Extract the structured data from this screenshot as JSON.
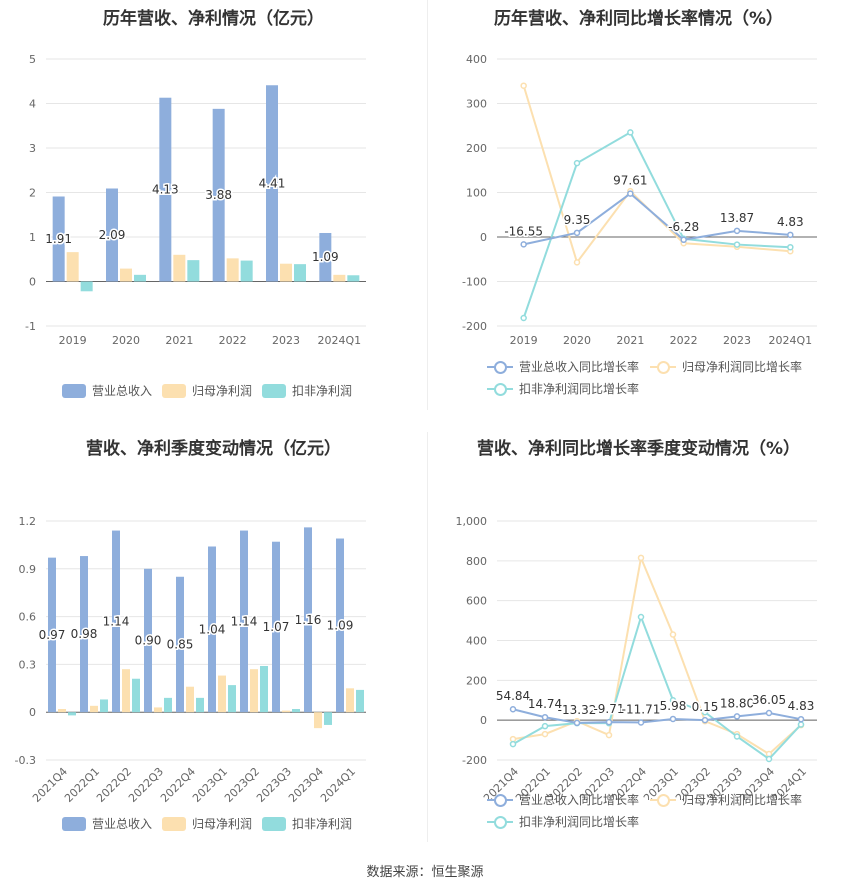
{
  "source_label": "数据来源：恒生聚源",
  "colors": {
    "revenue": "#8EAEDC",
    "net_profit": "#FCE0B0",
    "deducted_profit": "#92DCDD",
    "rev_line": "#8EAEDC",
    "np_line": "#FCE0B0",
    "dp_line": "#92DCDD"
  },
  "chart_data": [
    {
      "id": "annual_bars",
      "type": "bar",
      "title": "历年营收、净利情况（亿元）",
      "categories": [
        "2019",
        "2020",
        "2021",
        "2022",
        "2023",
        "2024Q1"
      ],
      "ylim": [
        -1,
        5
      ],
      "yticks": [
        -1,
        0,
        1,
        2,
        3,
        4,
        5
      ],
      "ytick_labels": [
        "-1",
        "0",
        "1",
        "2",
        "3",
        "4",
        "5"
      ],
      "series": [
        {
          "name": "营业总收入",
          "values": [
            1.91,
            2.09,
            4.13,
            3.88,
            4.41,
            1.09
          ],
          "labels": [
            "1.91",
            "2.09",
            "4.13",
            "3.88",
            "4.41",
            "1.09"
          ]
        },
        {
          "name": "归母净利润",
          "values": [
            0.66,
            0.29,
            0.6,
            0.52,
            0.4,
            0.15
          ]
        },
        {
          "name": "扣非净利润",
          "values": [
            -0.22,
            0.15,
            0.48,
            0.47,
            0.39,
            0.14
          ]
        }
      ],
      "legend_position": "bottom"
    },
    {
      "id": "annual_lines",
      "type": "line",
      "title": "历年营收、净利同比增长率情况（%）",
      "categories": [
        "2019",
        "2020",
        "2021",
        "2022",
        "2023",
        "2024Q1"
      ],
      "ylim": [
        -200,
        400
      ],
      "yticks": [
        -200,
        -100,
        0,
        100,
        200,
        300,
        400
      ],
      "ytick_labels": [
        "-200",
        "-100",
        "0",
        "100",
        "200",
        "300",
        "400"
      ],
      "series": [
        {
          "name": "营业总收入同比增长率",
          "values": [
            -16.55,
            9.35,
            97.61,
            -6.28,
            13.87,
            4.83
          ],
          "labels": [
            "-16.55",
            "9.35",
            "97.61",
            "-6.28",
            "13.87",
            "4.83"
          ]
        },
        {
          "name": "归母净利润同比增长率",
          "values": [
            340,
            -57,
            103,
            -14,
            -22,
            -32
          ]
        },
        {
          "name": "扣非净利润同比增长率",
          "values": [
            -182,
            166,
            235,
            -4,
            -17,
            -23
          ]
        }
      ],
      "legend_position": "bottom"
    },
    {
      "id": "quarterly_bars",
      "type": "bar",
      "title": "营收、净利季度变动情况（亿元）",
      "categories": [
        "2021Q4",
        "2022Q1",
        "2022Q2",
        "2022Q3",
        "2022Q4",
        "2023Q1",
        "2023Q2",
        "2023Q3",
        "2023Q4",
        "2024Q1"
      ],
      "ylim": [
        -0.3,
        1.2
      ],
      "yticks": [
        -0.3,
        0,
        0.3,
        0.6,
        0.9,
        1.2
      ],
      "ytick_labels": [
        "-0.3",
        "0",
        "0.3",
        "0.6",
        "0.9",
        "1.2"
      ],
      "series": [
        {
          "name": "营业总收入",
          "values": [
            0.97,
            0.98,
            1.14,
            0.9,
            0.85,
            1.04,
            1.14,
            1.07,
            1.16,
            1.09
          ],
          "labels": [
            "0.97",
            "0.98",
            "1.14",
            "0.90",
            "0.85",
            "1.04",
            "1.14",
            "1.07",
            "1.16",
            "1.09"
          ]
        },
        {
          "name": "归母净利润",
          "values": [
            0.02,
            0.04,
            0.27,
            0.03,
            0.16,
            0.23,
            0.27,
            0.01,
            -0.1,
            0.15
          ]
        },
        {
          "name": "扣非净利润",
          "values": [
            -0.02,
            0.08,
            0.21,
            0.09,
            0.09,
            0.17,
            0.29,
            0.02,
            -0.08,
            0.14
          ]
        }
      ],
      "legend_position": "bottom"
    },
    {
      "id": "quarterly_lines",
      "type": "line",
      "title": "营收、净利同比增长率季度变动情况（%）",
      "categories": [
        "2021Q4",
        "2022Q1",
        "2022Q2",
        "2022Q3",
        "2022Q4",
        "2023Q1",
        "2023Q2",
        "2023Q3",
        "2023Q4",
        "2024Q1"
      ],
      "ylim": [
        -200,
        1000
      ],
      "yticks": [
        -200,
        0,
        200,
        400,
        600,
        800,
        1000
      ],
      "ytick_labels": [
        "-200",
        "0",
        "200",
        "400",
        "600",
        "800",
        "1,000"
      ],
      "series": [
        {
          "name": "营业总收入同比增长率",
          "values": [
            54.84,
            14.74,
            -13.32,
            -9.71,
            -11.71,
            5.98,
            0.15,
            18.8,
            36.05,
            4.83
          ],
          "labels": [
            "54.84",
            "14.74",
            "-13.32",
            "-9.71",
            "-11.71",
            "5.98",
            "0.15",
            "18.80",
            "36.05",
            "4.83"
          ]
        },
        {
          "name": "归母净利润同比增长率",
          "values": [
            -95,
            -70,
            -5,
            -75,
            815,
            430,
            -5,
            -70,
            -170,
            -25
          ]
        },
        {
          "name": "扣非净利润同比增长率",
          "values": [
            -120,
            -30,
            -15,
            -15,
            518,
            100,
            40,
            -82,
            -195,
            -22
          ]
        }
      ],
      "legend_position": "bottom"
    }
  ]
}
